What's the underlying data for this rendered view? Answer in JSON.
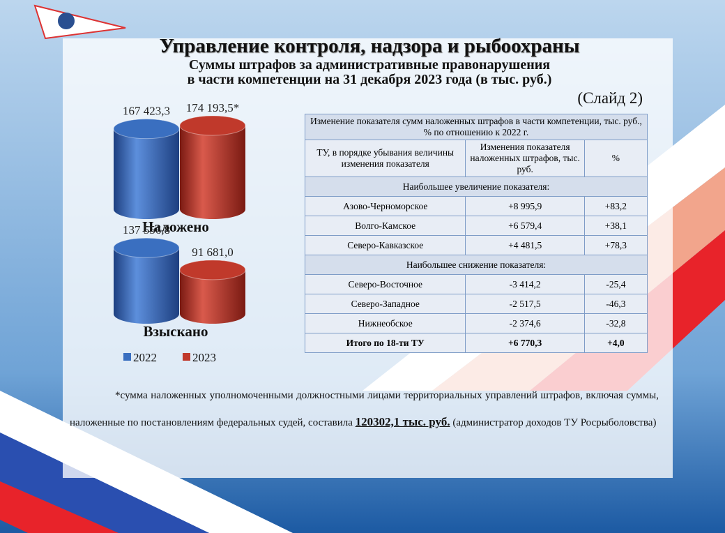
{
  "header": {
    "title": "Управление контроля, надзора и рыбоохраны",
    "subtitle_lines": [
      "Суммы штрафов за административные правонарушения",
      "в части компетенции на 31 декабря 2023 года (в тыс. руб.)"
    ],
    "slide_label": "(Слайд 2)"
  },
  "chart_data": {
    "type": "bar",
    "categories": [
      "Наложено",
      "Взыскано"
    ],
    "series": [
      {
        "name": "2022",
        "color": "#3a6fc0",
        "values": [
          167423.3,
          137556.8
        ],
        "value_labels": [
          "167 423,3",
          "137 556,8"
        ]
      },
      {
        "name": "2023",
        "color": "#c0392b",
        "values": [
          174193.5,
          91681.0
        ],
        "value_labels": [
          "174 193,5*",
          "91 681,0"
        ]
      }
    ]
  },
  "table": {
    "title": "Изменение показателя сумм наложенных штрафов в части компетенции, тыс. руб., % по отношению к 2022 г.",
    "columns": [
      "ТУ, в порядке убывания величины изменения показателя",
      "Изменения показателя наложенных штрафов, тыс. руб.",
      "%"
    ],
    "sections": [
      {
        "label": "Наибольшее увеличение показателя:",
        "rows": [
          [
            "Азово-Черноморское",
            "+8 995,9",
            "+83,2"
          ],
          [
            "Волго-Камское",
            "+6 579,4",
            "+38,1"
          ],
          [
            "Северо-Кавказское",
            "+4 481,5",
            "+78,3"
          ]
        ]
      },
      {
        "label": "Наибольшее снижение показателя:",
        "rows": [
          [
            "Северо-Восточное",
            "-3 414,2",
            "-25,4"
          ],
          [
            "Северо-Западное",
            "-2 517,5",
            "-46,3"
          ],
          [
            "Нижнеобское",
            "-2 374,6",
            "-32,8"
          ]
        ]
      }
    ],
    "total": [
      "Итого по 18-ти ТУ",
      "+6 770,3",
      "+4,0"
    ]
  },
  "footnote": {
    "parts": [
      "*сумма наложенных уполномоченными должностными лицами территориальных управлений штрафов, включая суммы, наложенные по постановлениям федеральных судей, составила",
      "120302,1 тыс. руб.",
      "(администратор доходов ТУ Росрыболовства)"
    ]
  }
}
